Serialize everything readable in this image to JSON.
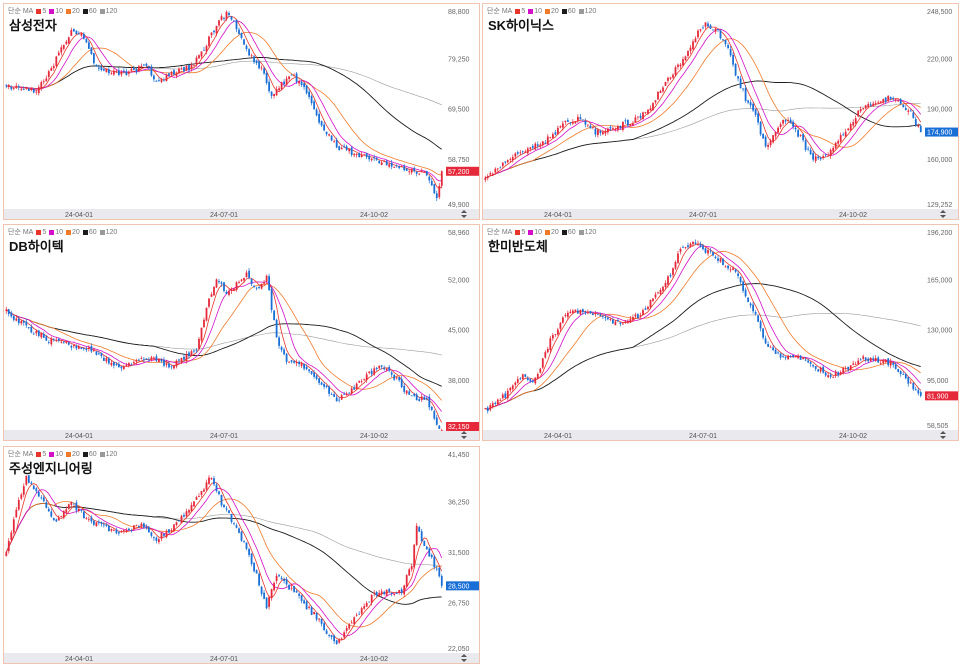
{
  "legend": {
    "prefix": "단순 MA",
    "items": [
      {
        "label": "5",
        "color": "#e8352b"
      },
      {
        "label": "10",
        "color": "#d40fc8"
      },
      {
        "label": "20",
        "color": "#f07a2a"
      },
      {
        "label": "60",
        "color": "#1c1c1c"
      },
      {
        "label": "120",
        "color": "#9a9a9a"
      }
    ]
  },
  "colors": {
    "up": "#e5283a",
    "down": "#1a6fd6",
    "axis_band": "#e9e9ee"
  },
  "chart_data": [
    {
      "type": "candlestick",
      "title": "삼성전자",
      "yticks": [
        "88,800",
        "79,250",
        "69,500",
        "58,750",
        "49,900"
      ],
      "ylim": [
        49900,
        88800
      ],
      "xticks": [
        "24-04-01",
        "24-07-01",
        "24-10-02"
      ],
      "last_price": "57,200",
      "last_value": 57200,
      "price_tag_color": "#e5283a",
      "anchors": [
        [
          0,
          73500
        ],
        [
          12,
          73000
        ],
        [
          18,
          77000
        ],
        [
          26,
          84500
        ],
        [
          30,
          84000
        ],
        [
          36,
          77500
        ],
        [
          46,
          76000
        ],
        [
          56,
          77500
        ],
        [
          60,
          74500
        ],
        [
          66,
          76000
        ],
        [
          74,
          77500
        ],
        [
          80,
          82000
        ],
        [
          84,
          85500
        ],
        [
          88,
          87800
        ],
        [
          92,
          85000
        ],
        [
          96,
          80500
        ],
        [
          102,
          77000
        ],
        [
          106,
          72000
        ],
        [
          114,
          76000
        ],
        [
          120,
          72500
        ],
        [
          126,
          66000
        ],
        [
          132,
          62000
        ],
        [
          140,
          60500
        ],
        [
          148,
          59000
        ],
        [
          156,
          58500
        ],
        [
          162,
          57500
        ],
        [
          168,
          56500
        ],
        [
          172,
          51500
        ],
        [
          174,
          57200
        ]
      ]
    },
    {
      "type": "candlestick",
      "title": "SK하이닉스",
      "yticks": [
        "248,500",
        "220,000",
        "190,000",
        "160,000",
        "129,252"
      ],
      "ylim": [
        129252,
        248500
      ],
      "xticks": [
        "24-04-01",
        "24-07-01",
        "24-10-02"
      ],
      "last_price": "174,900",
      "last_value": 174900,
      "price_tag_color": "#1a6fd6",
      "anchors": [
        [
          0,
          147000
        ],
        [
          8,
          158000
        ],
        [
          16,
          163000
        ],
        [
          24,
          170000
        ],
        [
          32,
          180000
        ],
        [
          38,
          183000
        ],
        [
          44,
          175000
        ],
        [
          52,
          178000
        ],
        [
          60,
          182000
        ],
        [
          66,
          190000
        ],
        [
          72,
          205000
        ],
        [
          78,
          215000
        ],
        [
          84,
          232000
        ],
        [
          88,
          240000
        ],
        [
          92,
          236000
        ],
        [
          96,
          228000
        ],
        [
          100,
          210000
        ],
        [
          104,
          195000
        ],
        [
          108,
          185000
        ],
        [
          112,
          165000
        ],
        [
          116,
          175000
        ],
        [
          120,
          182000
        ],
        [
          126,
          172000
        ],
        [
          130,
          160000
        ],
        [
          134,
          158000
        ],
        [
          140,
          168000
        ],
        [
          146,
          178000
        ],
        [
          150,
          190000
        ],
        [
          156,
          192000
        ],
        [
          162,
          196000
        ],
        [
          166,
          192000
        ],
        [
          170,
          186000
        ],
        [
          174,
          174900
        ]
      ]
    },
    {
      "type": "candlestick",
      "title": "DB하이텍",
      "yticks": [
        "58,960",
        "52,000",
        "45,000",
        "38,000",
        "32,150"
      ],
      "ylim": [
        32150,
        58960
      ],
      "xticks": [
        "24-04-01",
        "24-07-01",
        "24-10-02"
      ],
      "last_price": "32,150",
      "last_value": 32150,
      "price_tag_color": "#e5283a",
      "anchors": [
        [
          0,
          48000
        ],
        [
          10,
          45500
        ],
        [
          18,
          44000
        ],
        [
          26,
          43500
        ],
        [
          34,
          43000
        ],
        [
          40,
          41500
        ],
        [
          46,
          40500
        ],
        [
          54,
          42000
        ],
        [
          60,
          41500
        ],
        [
          66,
          40500
        ],
        [
          72,
          42000
        ],
        [
          76,
          43000
        ],
        [
          80,
          48500
        ],
        [
          84,
          52000
        ],
        [
          88,
          50500
        ],
        [
          92,
          51500
        ],
        [
          96,
          53000
        ],
        [
          100,
          51000
        ],
        [
          104,
          52500
        ],
        [
          108,
          44500
        ],
        [
          112,
          41500
        ],
        [
          120,
          40500
        ],
        [
          126,
          38500
        ],
        [
          132,
          36000
        ],
        [
          138,
          37500
        ],
        [
          144,
          39500
        ],
        [
          150,
          40500
        ],
        [
          156,
          39000
        ],
        [
          160,
          37000
        ],
        [
          164,
          36500
        ],
        [
          168,
          36000
        ],
        [
          172,
          33000
        ],
        [
          174,
          32150
        ]
      ]
    },
    {
      "type": "candlestick",
      "title": "한미반도체",
      "yticks": [
        "196,200",
        "165,000",
        "130,000",
        "95,000",
        "58,505"
      ],
      "ylim": [
        58505,
        196200
      ],
      "xticks": [
        "24-04-01",
        "24-07-01",
        "24-10-02"
      ],
      "last_price": "81,900",
      "last_value": 81900,
      "price_tag_color": "#e5283a",
      "anchors": [
        [
          0,
          72000
        ],
        [
          8,
          82000
        ],
        [
          14,
          95000
        ],
        [
          20,
          93000
        ],
        [
          26,
          120000
        ],
        [
          32,
          138000
        ],
        [
          38,
          140000
        ],
        [
          46,
          136000
        ],
        [
          54,
          132000
        ],
        [
          62,
          138000
        ],
        [
          68,
          150000
        ],
        [
          74,
          165000
        ],
        [
          78,
          182000
        ],
        [
          84,
          186000
        ],
        [
          90,
          180000
        ],
        [
          96,
          172000
        ],
        [
          100,
          168000
        ],
        [
          104,
          150000
        ],
        [
          108,
          138000
        ],
        [
          112,
          118000
        ],
        [
          118,
          110000
        ],
        [
          124,
          108000
        ],
        [
          130,
          105000
        ],
        [
          136,
          96000
        ],
        [
          142,
          98000
        ],
        [
          150,
          108000
        ],
        [
          156,
          106000
        ],
        [
          162,
          104000
        ],
        [
          168,
          93000
        ],
        [
          174,
          81900
        ]
      ]
    },
    {
      "type": "candlestick",
      "title": "주성엔지니어링",
      "yticks": [
        "41,450",
        "36,250",
        "31,500",
        "26,750",
        "22,050"
      ],
      "ylim": [
        22050,
        41450
      ],
      "xticks": [
        "24-04-01",
        "24-07-01",
        "24-10-02"
      ],
      "last_price": "28,500",
      "last_value": 28500,
      "price_tag_color": "#1a6fd6",
      "anchors": [
        [
          0,
          31500
        ],
        [
          4,
          36000
        ],
        [
          8,
          39000
        ],
        [
          14,
          37000
        ],
        [
          20,
          34500
        ],
        [
          26,
          36500
        ],
        [
          32,
          35000
        ],
        [
          40,
          34000
        ],
        [
          46,
          33500
        ],
        [
          54,
          34500
        ],
        [
          60,
          33000
        ],
        [
          66,
          34000
        ],
        [
          72,
          35500
        ],
        [
          78,
          37500
        ],
        [
          82,
          39000
        ],
        [
          86,
          36500
        ],
        [
          92,
          34000
        ],
        [
          96,
          32000
        ],
        [
          100,
          29500
        ],
        [
          104,
          26500
        ],
        [
          108,
          29500
        ],
        [
          112,
          28500
        ],
        [
          116,
          28000
        ],
        [
          120,
          26500
        ],
        [
          124,
          25500
        ],
        [
          128,
          24000
        ],
        [
          132,
          22800
        ],
        [
          136,
          24500
        ],
        [
          140,
          25500
        ],
        [
          146,
          27500
        ],
        [
          152,
          28000
        ],
        [
          158,
          28000
        ],
        [
          162,
          30500
        ],
        [
          164,
          34000
        ],
        [
          168,
          32000
        ],
        [
          172,
          30000
        ],
        [
          174,
          28500
        ]
      ]
    }
  ]
}
